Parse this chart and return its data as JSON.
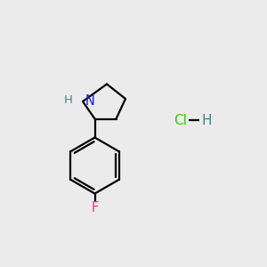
{
  "background_color": "#ebebeb",
  "bond_color": "#000000",
  "N_color": "#1a1aff",
  "F_color": "#e8368f",
  "Cl_color": "#33cc00",
  "H_color": "#4d8080",
  "line_width": 1.6,
  "font_size": 10.5,
  "N_label": "N",
  "H_label": "H",
  "F_label": "F",
  "Cl_label": "Cl",
  "HCl_H_label": "H"
}
